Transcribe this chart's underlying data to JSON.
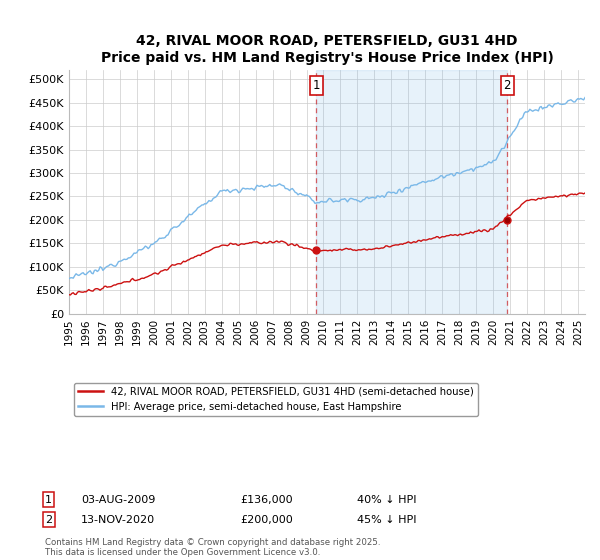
{
  "title": "42, RIVAL MOOR ROAD, PETERSFIELD, GU31 4HD",
  "subtitle": "Price paid vs. HM Land Registry's House Price Index (HPI)",
  "ylim": [
    0,
    520000
  ],
  "yticks": [
    0,
    50000,
    100000,
    150000,
    200000,
    250000,
    300000,
    350000,
    400000,
    450000,
    500000
  ],
  "ytick_labels": [
    "£0",
    "£50K",
    "£100K",
    "£150K",
    "£200K",
    "£250K",
    "£300K",
    "£350K",
    "£400K",
    "£450K",
    "£500K"
  ],
  "hpi_color": "#7ab8e8",
  "hpi_fill_color": "#ddeeff",
  "price_color": "#cc1111",
  "sale1_price": 136000,
  "sale2_price": 200000,
  "sale1_year": 2009,
  "sale1_month": 7,
  "sale2_year": 2020,
  "sale2_month": 10,
  "start_year": 1995,
  "end_year": 2025,
  "legend_line1": "42, RIVAL MOOR ROAD, PETERSFIELD, GU31 4HD (semi-detached house)",
  "legend_line2": "HPI: Average price, semi-detached house, East Hampshire",
  "marker1_date_str": "03-AUG-2009",
  "marker1_price": "£136,000",
  "marker1_pct": "40% ↓ HPI",
  "marker2_date_str": "13-NOV-2020",
  "marker2_price": "£200,000",
  "marker2_pct": "45% ↓ HPI",
  "footnote": "Contains HM Land Registry data © Crown copyright and database right 2025.\nThis data is licensed under the Open Government Licence v3.0.",
  "background_color": "#ffffff",
  "grid_color": "#cccccc"
}
